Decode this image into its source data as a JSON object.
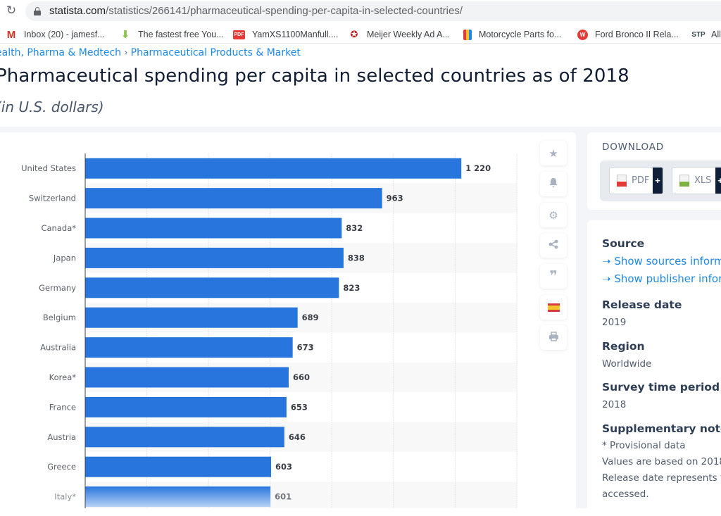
{
  "browser": {
    "url_host": "statista.com",
    "url_path": "/statistics/266141/pharmaceutical-spending-per-capita-in-selected-countries/",
    "bookmarks": [
      {
        "label": "Inbox (20) - jamesf...",
        "icon": "gmail-icon",
        "glyph": "M"
      },
      {
        "label": "The fastest free You...",
        "icon": "download-arrow-icon",
        "glyph": "⬇"
      },
      {
        "label": "YamXS1100Manfull....",
        "icon": "pdf-icon",
        "glyph": "PDF"
      },
      {
        "label": "Meijer Weekly Ad A...",
        "icon": "meijer-icon",
        "glyph": "✪"
      },
      {
        "label": "Motorcycle Parts fo...",
        "icon": "shopping-bag-icon",
        "glyph": ""
      },
      {
        "label": "Ford Bronco II Rela...",
        "icon": "ford-icon",
        "glyph": "W"
      },
      {
        "label": "Alli",
        "icon": "stp-icon",
        "glyph": "STP"
      }
    ]
  },
  "breadcrumb": {
    "items": [
      "ealth, Pharma & Medtech",
      "Pharmaceutical Products & Market"
    ],
    "separator": "›"
  },
  "page": {
    "title": "Pharmaceutical spending per capita in selected countries as of 2018",
    "subtitle": "(in U.S. dollars)"
  },
  "chart_data": {
    "type": "bar",
    "orientation": "horizontal",
    "title": "Pharmaceutical spending per capita in selected countries as of 2018",
    "subtitle": "(in U.S. dollars)",
    "xlabel": "",
    "ylabel": "",
    "categories": [
      "United States",
      "Switzerland",
      "Canada*",
      "Japan",
      "Germany",
      "Belgium",
      "Australia",
      "Korea*",
      "France",
      "Austria",
      "Greece",
      "Italy*"
    ],
    "values": [
      1220,
      963,
      832,
      838,
      823,
      689,
      673,
      660,
      653,
      646,
      603,
      601
    ],
    "value_labels": [
      "1 220",
      "963",
      "832",
      "838",
      "823",
      "689",
      "673",
      "660",
      "653",
      "646",
      "603",
      "601"
    ],
    "xlim": [
      0,
      1400
    ],
    "grid_step": 200,
    "grid": true,
    "bar_color": "#2876dd",
    "legend": "none"
  },
  "side_tools": [
    {
      "name": "favorite",
      "icon": "star-icon",
      "glyph": "★"
    },
    {
      "name": "notification",
      "icon": "bell-icon",
      "glyph": "🔔"
    },
    {
      "name": "settings",
      "icon": "gear-icon",
      "glyph": "⚙"
    },
    {
      "name": "share",
      "icon": "share-icon",
      "glyph": "⋖"
    },
    {
      "name": "cite",
      "icon": "quote-icon",
      "glyph": "❞"
    },
    {
      "name": "language",
      "icon": "spain-flag-icon",
      "glyph": ""
    },
    {
      "name": "print",
      "icon": "printer-icon",
      "glyph": "⎙"
    }
  ],
  "download": {
    "title": "DOWNLOAD",
    "buttons": [
      {
        "label": "PDF",
        "plus": "+"
      },
      {
        "label": "XLS",
        "plus": "+"
      }
    ]
  },
  "info": {
    "source_heading": "Source",
    "source_links": [
      "Show sources inform",
      "Show publisher infor"
    ],
    "release_heading": "Release date",
    "release_value": "2019",
    "region_heading": "Region",
    "region_value": "Worldwide",
    "survey_heading": "Survey time period",
    "survey_value": "2018",
    "notes_heading": "Supplementary notes",
    "notes": [
      "* Provisional data",
      "Values are based on 2018",
      "Release date represents t",
      "accessed."
    ]
  }
}
